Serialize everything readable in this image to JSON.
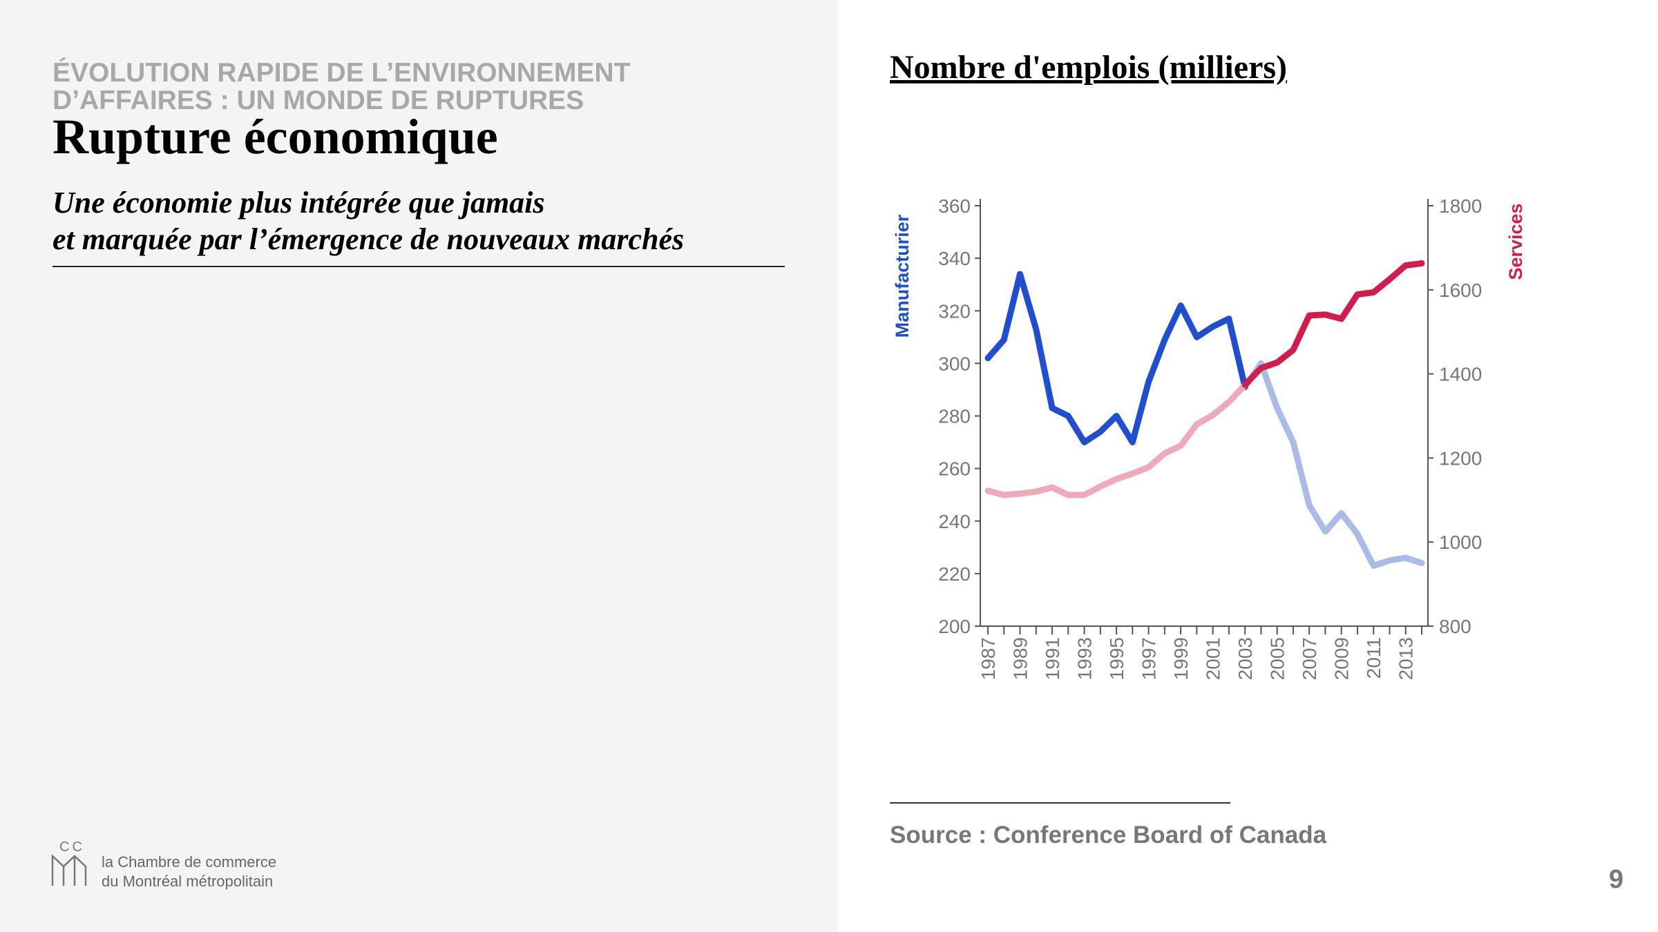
{
  "header": {
    "kicker": [
      "ÉVOLUTION RAPIDE DE L’ENVIRONNEMENT",
      "D’AFFAIRES : UN MONDE DE RUPTURES"
    ],
    "title": "Rupture économique",
    "subtitle": [
      "Une économie plus intégrée que jamais",
      "et marquée par l’émergence de nouveaux marchés"
    ]
  },
  "chart_data": {
    "type": "line",
    "title": "Nombre d'emplois (milliers)",
    "categories": [
      "1987",
      null,
      "1989",
      null,
      "1991",
      null,
      "1993",
      null,
      "1995",
      null,
      "1997",
      null,
      "1999",
      null,
      "2001",
      null,
      "2003",
      null,
      "2005",
      null,
      "2007",
      null,
      "2009",
      null,
      "2011",
      null,
      "2013",
      null
    ],
    "series": [
      {
        "name": "Manufacturier",
        "color": "#1f4fcf",
        "faded_color": "#a9bbe9",
        "axis": "y",
        "values": [
          302,
          309,
          334,
          313,
          283,
          280,
          270,
          274,
          280,
          270,
          293,
          309,
          322,
          310,
          314,
          317,
          291,
          300,
          283,
          270,
          246,
          236,
          243,
          235,
          223,
          225,
          226,
          224
        ]
      },
      {
        "name": "Services",
        "color": "#d21c4c",
        "faded_color": "#eeaab9",
        "axis": "y2",
        "values": [
          1122,
          1112,
          1115,
          1120,
          1130,
          1112,
          1112,
          1132,
          1150,
          1163,
          1178,
          1211,
          1229,
          1280,
          1302,
          1333,
          1374,
          1414,
          1427,
          1457,
          1539,
          1541,
          1531,
          1589,
          1594,
          1625,
          1658,
          1663
        ]
      }
    ],
    "ylim": [
      200,
      360
    ],
    "yticks": [
      200,
      220,
      240,
      260,
      280,
      300,
      320,
      340,
      360
    ],
    "y2lim": [
      800,
      1800
    ],
    "y2ticks": [
      800,
      1000,
      1200,
      1400,
      1600,
      1800
    ],
    "source": "Source : Conference Board of Canada"
  },
  "footer": {
    "logo_mark": "CC",
    "logo_text": [
      "la Chambre de commerce",
      "du Montréal métropolitain"
    ],
    "page": "9"
  }
}
